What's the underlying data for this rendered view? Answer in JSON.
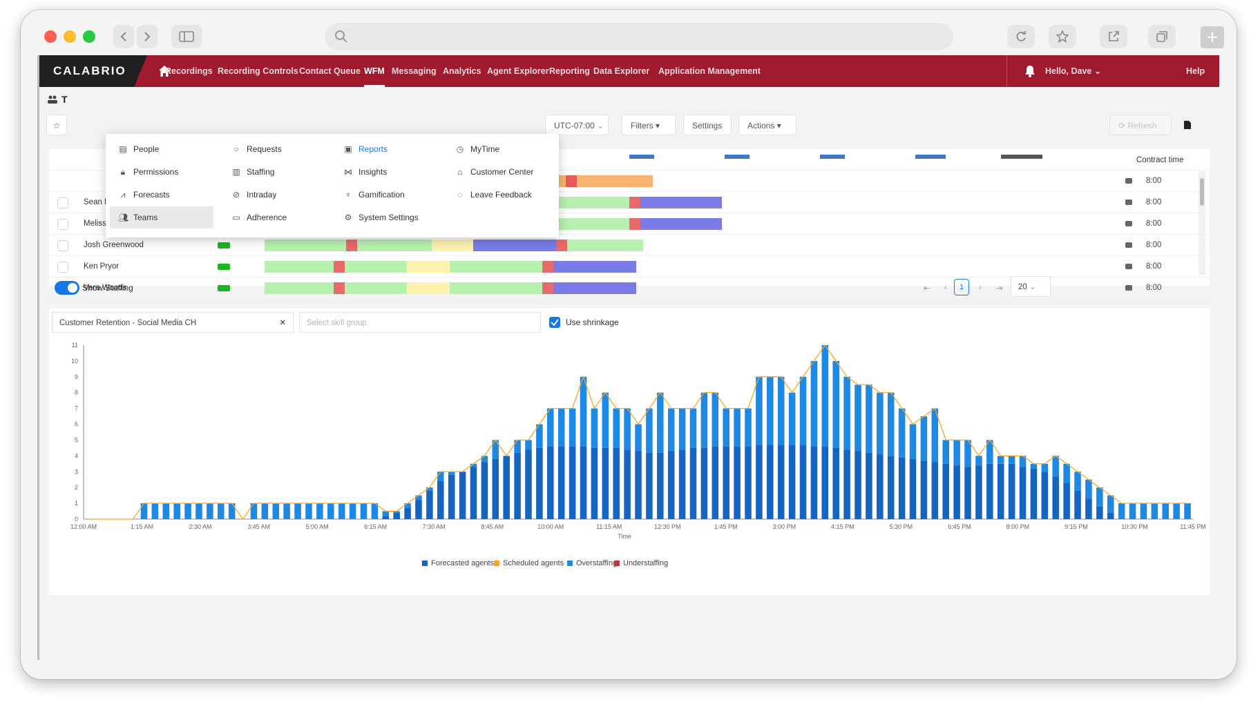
{
  "app": {
    "logo": "CALABRIO"
  },
  "nav": {
    "items": [
      {
        "label": "Recordings"
      },
      {
        "label": "Recording Controls"
      },
      {
        "label": "Contact Queue"
      },
      {
        "label": "WFM",
        "active": true
      },
      {
        "label": "Messaging"
      },
      {
        "label": "Analytics"
      },
      {
        "label": "Agent Explorer"
      },
      {
        "label": "Reporting"
      },
      {
        "label": "Data Explorer"
      },
      {
        "label": "Application Management"
      }
    ],
    "user": "Hello, Dave",
    "help": "Help"
  },
  "menu": {
    "columns": [
      [
        {
          "label": "People",
          "icon": "people-icon"
        },
        {
          "label": "Permissions",
          "icon": "lock-icon"
        },
        {
          "label": "Forecasts",
          "icon": "forecast-icon"
        },
        {
          "label": "Teams",
          "icon": "teams-icon",
          "selected": true
        }
      ],
      [
        {
          "label": "Requests",
          "icon": "request-icon"
        },
        {
          "label": "Staffing",
          "icon": "staffing-icon"
        },
        {
          "label": "Intraday",
          "icon": "intraday-icon"
        },
        {
          "label": "Adherence",
          "icon": "adherence-icon"
        }
      ],
      [
        {
          "label": "Reports",
          "icon": "reports-icon",
          "active": true
        },
        {
          "label": "Insights",
          "icon": "insights-icon"
        },
        {
          "label": "Gamification",
          "icon": "trophy-icon"
        },
        {
          "label": "System Settings",
          "icon": "gear-icon"
        }
      ],
      [
        {
          "label": "MyTime",
          "icon": "clock-icon"
        },
        {
          "label": "Customer Center",
          "icon": "home-icon"
        },
        {
          "label": "Leave Feedback",
          "icon": "feedback-icon"
        }
      ]
    ]
  },
  "toolbar": {
    "timezone": "UTC-07:00",
    "filters": "Filters",
    "settings": "Settings",
    "actions": "Actions",
    "refresh": "Refresh",
    "contract_header": "Contract time"
  },
  "agents": [
    {
      "name": "Sean Brown",
      "contract": "8:00"
    },
    {
      "name": "Melissa Cole",
      "contract": "8:00"
    },
    {
      "name": "Josh Greenwood",
      "contract": "8:00"
    },
    {
      "name": "Ken Pryor",
      "contract": "8:00"
    },
    {
      "name": "Vera Woods",
      "contract": "8:00"
    }
  ],
  "contract_values": [
    "8:00",
    "8:00"
  ],
  "staffing": {
    "toggle_label": "Show Staffing",
    "skill": "Customer Retention - Social Media CH",
    "skill_group_placeholder": "Select skill group",
    "shrinkage_label": "Use shrinkage",
    "page": "1",
    "page_size": "20"
  },
  "chart_data": {
    "type": "bar",
    "xlabel": "Time",
    "x_ticks": [
      "12:00 AM",
      "1:15 AM",
      "2:30 AM",
      "3:45 AM",
      "5:00 AM",
      "6:15 AM",
      "7:30 AM",
      "8:45 AM",
      "10:00 AM",
      "11:15 AM",
      "12:30 PM",
      "1:45 PM",
      "3:00 PM",
      "4:15 PM",
      "5:30 PM",
      "6:45 PM",
      "8:00 PM",
      "9:15 PM",
      "10:30 PM",
      "11:45 PM"
    ],
    "y_ticks": [
      0,
      1,
      2,
      3,
      4,
      5,
      6,
      7,
      8,
      9,
      10,
      11
    ],
    "ylim": [
      0,
      11
    ],
    "legend": [
      "Forecasted agents",
      "Scheduled agents",
      "Overstaffing",
      "Understaffing"
    ],
    "colors": {
      "forecast": "#1565c0",
      "scheduled": "#f5a623",
      "over": "#1e88e5",
      "under": "#d32f2f"
    },
    "scheduled": [
      0,
      0,
      0,
      0,
      0,
      1,
      1,
      1,
      1,
      1,
      1,
      1,
      1,
      1,
      0,
      1,
      1,
      1,
      1,
      1,
      1,
      1,
      1,
      1,
      1,
      1,
      1,
      0.5,
      0.5,
      1,
      1.5,
      2,
      3,
      3,
      3,
      3.5,
      4,
      5,
      4,
      5,
      5,
      6,
      7,
      7,
      7,
      9,
      7,
      8,
      7,
      7,
      6,
      7,
      8,
      7,
      7,
      7,
      8,
      8,
      7,
      7,
      7,
      9,
      9,
      9,
      8,
      9,
      10,
      11,
      10,
      9,
      8.5,
      8.5,
      8,
      8,
      7,
      6,
      6.5,
      7,
      5,
      5,
      5,
      4,
      5,
      4,
      4,
      4,
      3.5,
      3.5,
      4,
      3.5,
      3,
      2.5,
      2,
      1.5,
      1,
      1,
      1,
      1,
      1,
      1,
      1
    ],
    "forecast": [
      0,
      0,
      0,
      0,
      0,
      0,
      0,
      0,
      0,
      0,
      0,
      0,
      0,
      0,
      0,
      0,
      0,
      0,
      0,
      0,
      0,
      0,
      0,
      0,
      0,
      0,
      0,
      0.2,
      0.4,
      0.7,
      1.2,
      1.8,
      2.4,
      2.8,
      3,
      3.3,
      3.6,
      3.8,
      4,
      4.2,
      4.4,
      4.5,
      4.6,
      4.6,
      4.6,
      4.6,
      4.5,
      4.5,
      4.5,
      4.4,
      4.3,
      4.2,
      4.2,
      4.3,
      4.4,
      4.5,
      4.5,
      4.6,
      4.6,
      4.6,
      4.6,
      4.7,
      4.7,
      4.7,
      4.7,
      4.7,
      4.6,
      4.6,
      4.5,
      4.4,
      4.3,
      4.2,
      4.1,
      4,
      3.9,
      3.8,
      3.7,
      3.6,
      3.5,
      3.4,
      3.3,
      3.4,
      3.5,
      3.5,
      3.5,
      3.3,
      3.2,
      3,
      2.7,
      2.3,
      1.8,
      1.3,
      0.8,
      0.4,
      0,
      0,
      0,
      0,
      0,
      0,
      0
    ]
  }
}
